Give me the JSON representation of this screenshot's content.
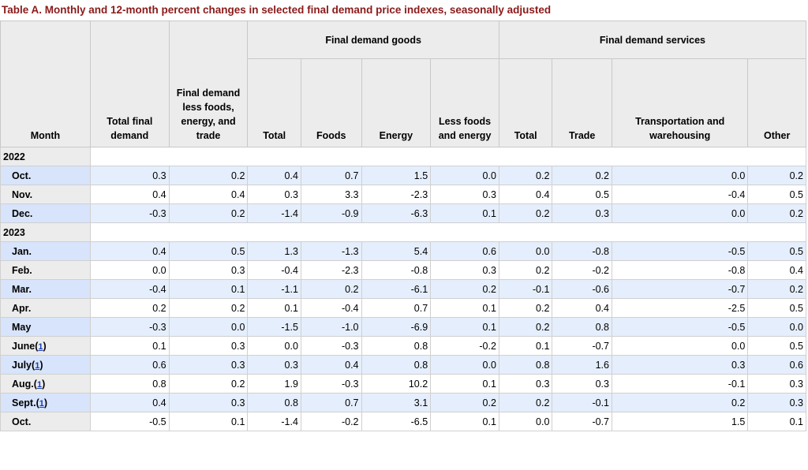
{
  "caption": "Table A. Monthly and 12-month percent changes in selected final demand price indexes, seasonally adjusted",
  "headers": {
    "month": "Month",
    "total_final_demand": "Total final demand",
    "fd_less": "Final demand less foods, energy, and trade",
    "goods_group": "Final demand goods",
    "services_group": "Final demand services",
    "goods_total": "Total",
    "goods_foods": "Foods",
    "goods_energy": "Energy",
    "goods_less": "Less foods and energy",
    "svc_total": "Total",
    "svc_trade": "Trade",
    "svc_transport": "Transportation and warehousing",
    "svc_other": "Other"
  },
  "footnote_marker": "1",
  "years": [
    "2022",
    "2023"
  ],
  "rows": [
    {
      "month": "Oct.",
      "values": [
        "0.3",
        "0.2",
        "0.4",
        "0.7",
        "1.5",
        "0.0",
        "0.2",
        "0.2",
        "0.0",
        "0.2"
      ]
    },
    {
      "month": "Nov.",
      "values": [
        "0.4",
        "0.4",
        "0.3",
        "3.3",
        "-2.3",
        "0.3",
        "0.4",
        "0.5",
        "-0.4",
        "0.5"
      ]
    },
    {
      "month": "Dec.",
      "values": [
        "-0.3",
        "0.2",
        "-1.4",
        "-0.9",
        "-6.3",
        "0.1",
        "0.2",
        "0.3",
        "0.0",
        "0.2"
      ]
    },
    {
      "month": "Jan.",
      "values": [
        "0.4",
        "0.5",
        "1.3",
        "-1.3",
        "5.4",
        "0.6",
        "0.0",
        "-0.8",
        "-0.5",
        "0.5"
      ]
    },
    {
      "month": "Feb.",
      "values": [
        "0.0",
        "0.3",
        "-0.4",
        "-2.3",
        "-0.8",
        "0.3",
        "0.2",
        "-0.2",
        "-0.8",
        "0.4"
      ]
    },
    {
      "month": "Mar.",
      "values": [
        "-0.4",
        "0.1",
        "-1.1",
        "0.2",
        "-6.1",
        "0.2",
        "-0.1",
        "-0.6",
        "-0.7",
        "0.2"
      ]
    },
    {
      "month": "Apr.",
      "values": [
        "0.2",
        "0.2",
        "0.1",
        "-0.4",
        "0.7",
        "0.1",
        "0.2",
        "0.4",
        "-2.5",
        "0.5"
      ]
    },
    {
      "month": "May",
      "values": [
        "-0.3",
        "0.0",
        "-1.5",
        "-1.0",
        "-6.9",
        "0.1",
        "0.2",
        "0.8",
        "-0.5",
        "0.0"
      ]
    },
    {
      "month": "June",
      "values": [
        "0.1",
        "0.3",
        "0.0",
        "-0.3",
        "0.8",
        "-0.2",
        "0.1",
        "-0.7",
        "0.0",
        "0.5"
      ]
    },
    {
      "month": "July",
      "values": [
        "0.6",
        "0.3",
        "0.3",
        "0.4",
        "0.8",
        "0.0",
        "0.8",
        "1.6",
        "0.3",
        "0.6"
      ]
    },
    {
      "month": "Aug.",
      "values": [
        "0.8",
        "0.2",
        "1.9",
        "-0.3",
        "10.2",
        "0.1",
        "0.3",
        "0.3",
        "-0.1",
        "0.3"
      ]
    },
    {
      "month": "Sept.",
      "values": [
        "0.4",
        "0.3",
        "0.8",
        "0.7",
        "3.1",
        "0.2",
        "0.2",
        "-0.1",
        "0.2",
        "0.3"
      ]
    },
    {
      "month": "Oct.",
      "values": [
        "-0.5",
        "0.1",
        "-1.4",
        "-0.2",
        "-6.5",
        "0.1",
        "0.0",
        "-0.7",
        "1.5",
        "0.1"
      ]
    }
  ]
}
